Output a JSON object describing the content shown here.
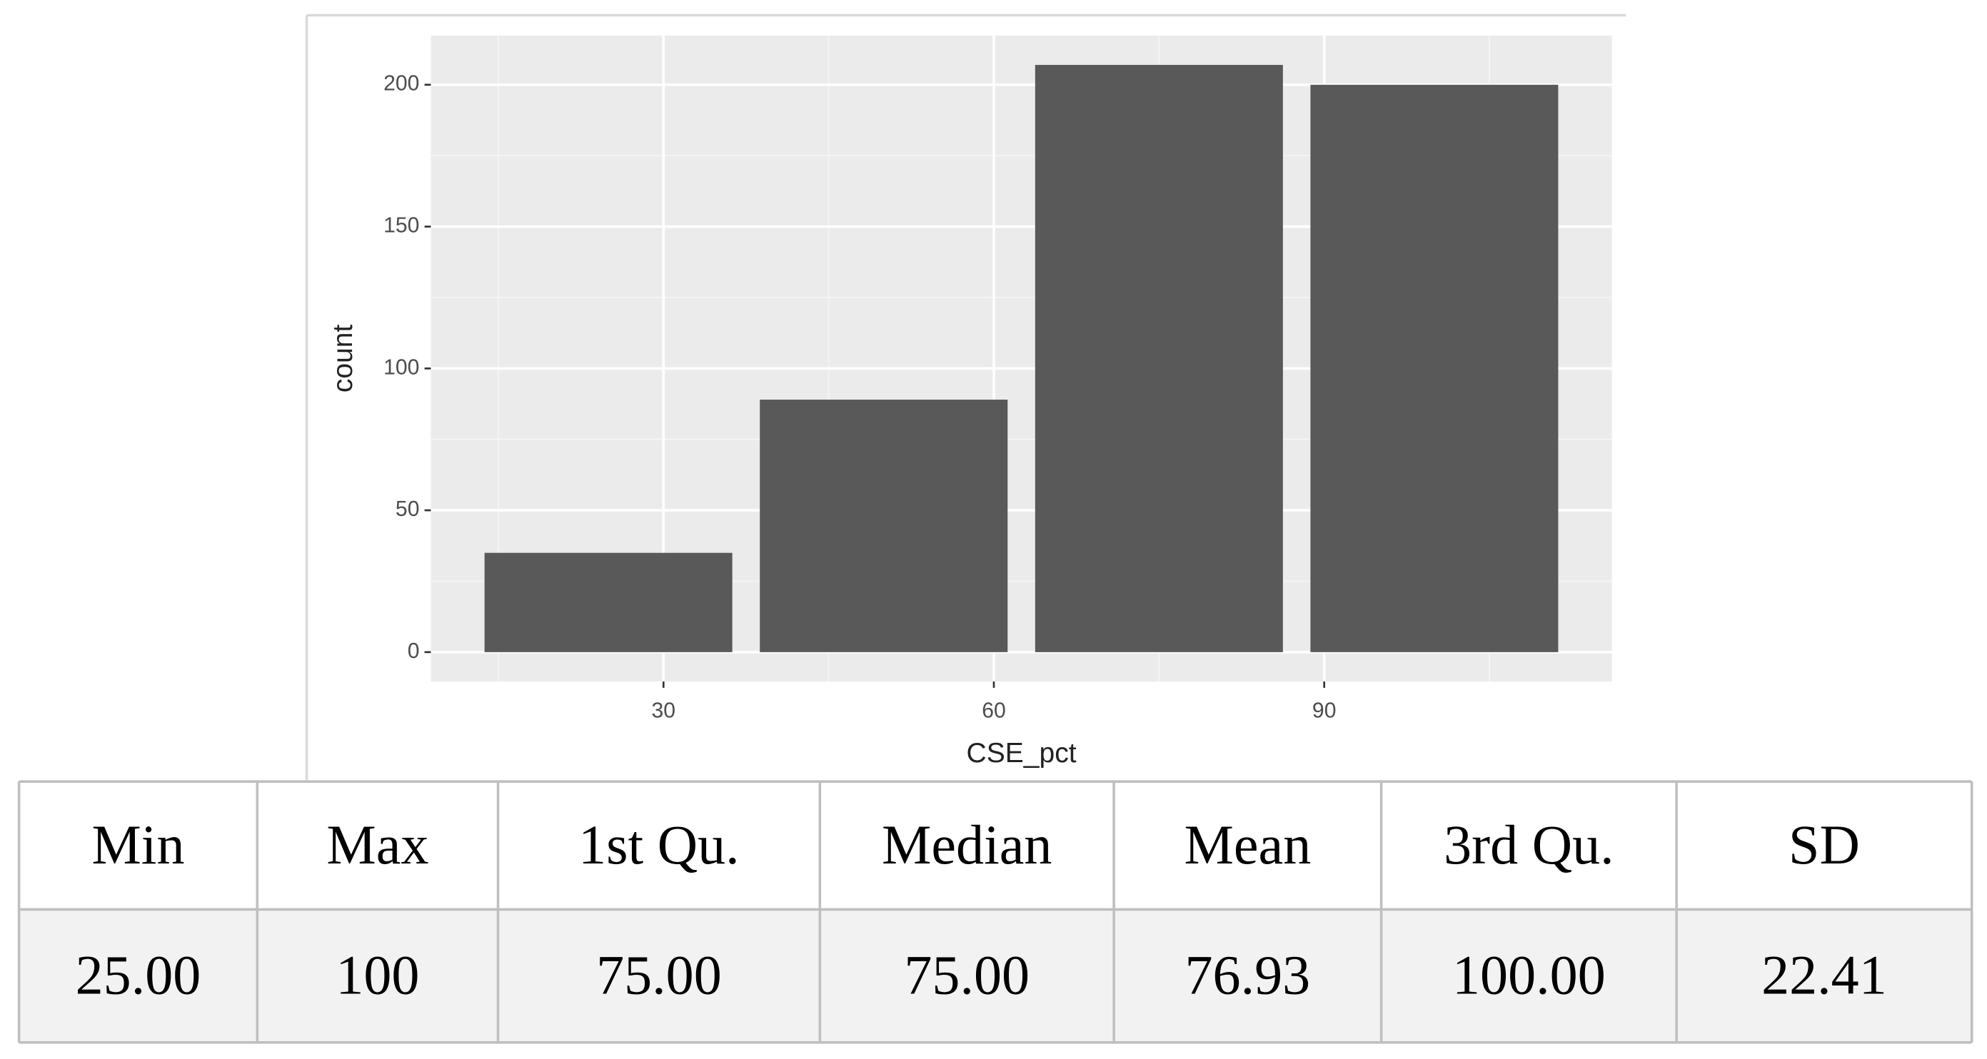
{
  "chart_data": {
    "type": "bar",
    "x": [
      25,
      50,
      75,
      100
    ],
    "values": [
      35,
      89,
      207,
      200
    ],
    "color": "#595959",
    "xlim": [
      8.875,
      116.125
    ],
    "ylim": [
      -10.35,
      217.35
    ],
    "xticks": [
      30,
      60,
      90
    ],
    "yticks": [
      0,
      50,
      100,
      150,
      200
    ],
    "x_minor_ticks": [
      15,
      45,
      75,
      105
    ],
    "y_minor_ticks": [
      25,
      75,
      125,
      175
    ],
    "xlabel": "CSE_pct",
    "ylabel": "count",
    "grid": true
  },
  "table": {
    "header": [
      "Min",
      "Max",
      "1st Qu.",
      "Median",
      "Mean",
      "3rd Qu.",
      "SD"
    ],
    "rows": [
      [
        "25.00",
        "100",
        "75.00",
        "75.00",
        "76.93",
        "100.00",
        "22.41"
      ]
    ]
  }
}
